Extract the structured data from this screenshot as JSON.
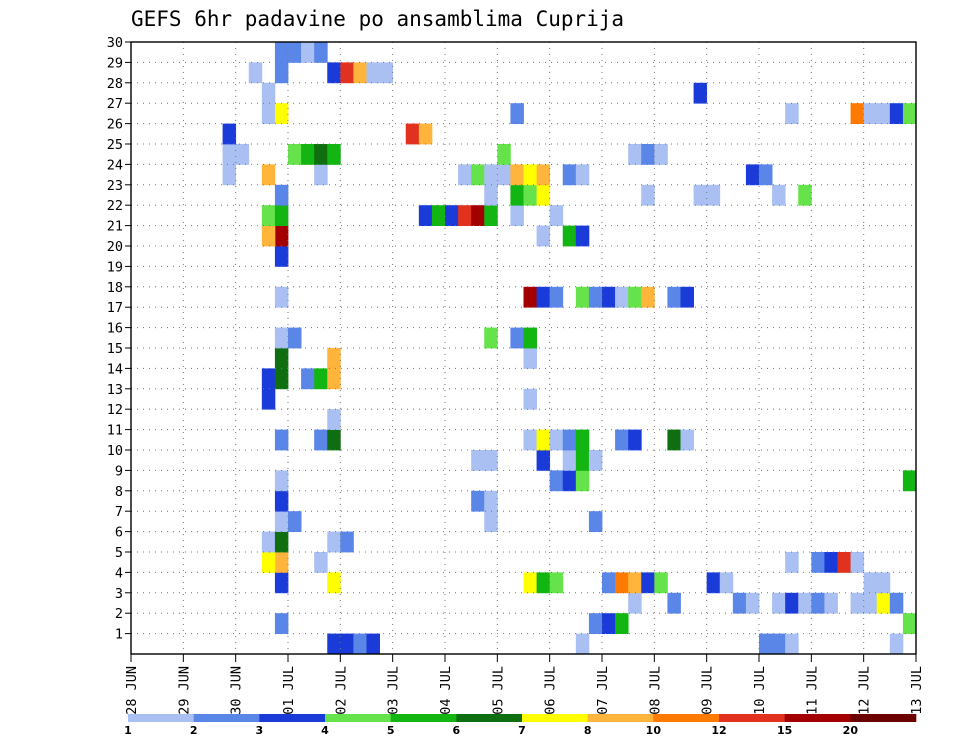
{
  "chart_data": {
    "type": "heatmap",
    "title": "GEFS 6hr padavine po ansamblima Cuprija",
    "x_tick_labels": [
      "28 JUN",
      "29 JUN",
      "30 JUN",
      "01 JUL",
      "02 JUL",
      "03 JUL",
      "04 JUL",
      "05 JUL",
      "06 JUL",
      "07 JUL",
      "08 JUL",
      "09 JUL",
      "10 JUL",
      "11 JUL",
      "12 JUL",
      "13 JUL"
    ],
    "y_tick_labels": [
      "1",
      "2",
      "3",
      "4",
      "5",
      "6",
      "7",
      "8",
      "9",
      "10",
      "11",
      "12",
      "13",
      "14",
      "15",
      "16",
      "17",
      "18",
      "19",
      "20",
      "21",
      "22",
      "23",
      "24",
      "25",
      "26",
      "27",
      "28",
      "29",
      "30"
    ],
    "x_unit": "6-hour step from 28 JUN 00",
    "xlim": [
      0,
      60
    ],
    "ylim": [
      0,
      30
    ],
    "grid": true,
    "color_scale": {
      "labels": [
        "1",
        "2",
        "3",
        "4",
        "5",
        "6",
        "7",
        "8",
        "10",
        "12",
        "15",
        "20"
      ],
      "colors": [
        "#aac0f3",
        "#5a86e8",
        "#1a3bd8",
        "#66e34a",
        "#12b512",
        "#0e6e10",
        "#ffff00",
        "#ffb43c",
        "#ff7a00",
        "#e0321e",
        "#a30000",
        "#6b0000"
      ]
    },
    "cells": [
      [
        16,
        0,
        "#1a3bd8"
      ],
      [
        17,
        0,
        "#1a3bd8"
      ],
      [
        18,
        0,
        "#5a86e8"
      ],
      [
        19,
        0,
        "#1a3bd8"
      ],
      [
        35,
        0,
        "#aac0f3"
      ],
      [
        49,
        0,
        "#5a86e8"
      ],
      [
        50,
        0,
        "#5a86e8"
      ],
      [
        51,
        0,
        "#aac0f3"
      ],
      [
        59,
        0,
        "#aac0f3"
      ],
      [
        12,
        1,
        "#5a86e8"
      ],
      [
        36,
        1,
        "#5a86e8"
      ],
      [
        37,
        1,
        "#1a3bd8"
      ],
      [
        38,
        1,
        "#12b512"
      ],
      [
        60,
        1,
        "#66e34a"
      ],
      [
        39,
        2,
        "#aac0f3"
      ],
      [
        42,
        2,
        "#5a86e8"
      ],
      [
        47,
        2,
        "#5a86e8"
      ],
      [
        48,
        2,
        "#aac0f3"
      ],
      [
        50,
        2,
        "#aac0f3"
      ],
      [
        51,
        2,
        "#1a3bd8"
      ],
      [
        52,
        2,
        "#aac0f3"
      ],
      [
        53,
        2,
        "#5a86e8"
      ],
      [
        54,
        2,
        "#aac0f3"
      ],
      [
        56,
        2,
        "#aac0f3"
      ],
      [
        57,
        2,
        "#aac0f3"
      ],
      [
        58,
        2,
        "#ffff00"
      ],
      [
        59,
        2,
        "#5a86e8"
      ],
      [
        12,
        3,
        "#1a3bd8"
      ],
      [
        16,
        3,
        "#ffff00"
      ],
      [
        31,
        3,
        "#ffff00"
      ],
      [
        32,
        3,
        "#12b512"
      ],
      [
        33,
        3,
        "#66e34a"
      ],
      [
        37,
        3,
        "#5a86e8"
      ],
      [
        38,
        3,
        "#ff7a00"
      ],
      [
        39,
        3,
        "#ffb43c"
      ],
      [
        40,
        3,
        "#1a3bd8"
      ],
      [
        41,
        3,
        "#66e34a"
      ],
      [
        45,
        3,
        "#1a3bd8"
      ],
      [
        46,
        3,
        "#aac0f3"
      ],
      [
        57,
        3,
        "#aac0f3"
      ],
      [
        58,
        3,
        "#aac0f3"
      ],
      [
        12,
        4,
        "#ffb43c"
      ],
      [
        15,
        4,
        "#aac0f3"
      ],
      [
        11,
        4,
        "#ffff00"
      ],
      [
        51,
        4,
        "#aac0f3"
      ],
      [
        53,
        4,
        "#5a86e8"
      ],
      [
        54,
        4,
        "#1a3bd8"
      ],
      [
        55,
        4,
        "#e0321e"
      ],
      [
        56,
        4,
        "#aac0f3"
      ],
      [
        11,
        5,
        "#aac0f3"
      ],
      [
        12,
        5,
        "#0e6e10"
      ],
      [
        16,
        5,
        "#aac0f3"
      ],
      [
        17,
        5,
        "#5a86e8"
      ],
      [
        12,
        6,
        "#aac0f3"
      ],
      [
        13,
        6,
        "#5a86e8"
      ],
      [
        28,
        6,
        "#aac0f3"
      ],
      [
        36,
        6,
        "#5a86e8"
      ],
      [
        12,
        7,
        "#1a3bd8"
      ],
      [
        27,
        7,
        "#5a86e8"
      ],
      [
        28,
        7,
        "#aac0f3"
      ],
      [
        12,
        8,
        "#aac0f3"
      ],
      [
        33,
        8,
        "#5a86e8"
      ],
      [
        34,
        8,
        "#1a3bd8"
      ],
      [
        35,
        8,
        "#66e34a"
      ],
      [
        60,
        8,
        "#12b512"
      ],
      [
        27,
        9,
        "#aac0f3"
      ],
      [
        28,
        9,
        "#aac0f3"
      ],
      [
        32,
        9,
        "#1a3bd8"
      ],
      [
        34,
        9,
        "#aac0f3"
      ],
      [
        35,
        9,
        "#12b512"
      ],
      [
        36,
        9,
        "#aac0f3"
      ],
      [
        12,
        10,
        "#5a86e8"
      ],
      [
        15,
        10,
        "#5a86e8"
      ],
      [
        16,
        10,
        "#0e6e10"
      ],
      [
        31,
        10,
        "#aac0f3"
      ],
      [
        32,
        10,
        "#ffff00"
      ],
      [
        33,
        10,
        "#aac0f3"
      ],
      [
        34,
        10,
        "#5a86e8"
      ],
      [
        35,
        10,
        "#12b512"
      ],
      [
        38,
        10,
        "#5a86e8"
      ],
      [
        39,
        10,
        "#1a3bd8"
      ],
      [
        42,
        10,
        "#0e6e10"
      ],
      [
        43,
        10,
        "#aac0f3"
      ],
      [
        16,
        11,
        "#aac0f3"
      ],
      [
        11,
        12,
        "#1a3bd8"
      ],
      [
        31,
        12,
        "#aac0f3"
      ],
      [
        11,
        13,
        "#1a3bd8"
      ],
      [
        12,
        13,
        "#0e6e10"
      ],
      [
        14,
        13,
        "#5a86e8"
      ],
      [
        15,
        13,
        "#12b512"
      ],
      [
        16,
        13,
        "#ffb43c"
      ],
      [
        12,
        14,
        "#0e6e10"
      ],
      [
        16,
        14,
        "#ffb43c"
      ],
      [
        31,
        14,
        "#aac0f3"
      ],
      [
        12,
        15,
        "#aac0f3"
      ],
      [
        13,
        15,
        "#5a86e8"
      ],
      [
        28,
        15,
        "#66e34a"
      ],
      [
        30,
        15,
        "#5a86e8"
      ],
      [
        31,
        15,
        "#12b512"
      ],
      [
        12,
        17,
        "#aac0f3"
      ],
      [
        31,
        17,
        "#a30000"
      ],
      [
        32,
        17,
        "#1a3bd8"
      ],
      [
        33,
        17,
        "#5a86e8"
      ],
      [
        35,
        17,
        "#66e34a"
      ],
      [
        36,
        17,
        "#5a86e8"
      ],
      [
        37,
        17,
        "#1a3bd8"
      ],
      [
        38,
        17,
        "#aac0f3"
      ],
      [
        39,
        17,
        "#66e34a"
      ],
      [
        40,
        17,
        "#ffb43c"
      ],
      [
        42,
        17,
        "#5a86e8"
      ],
      [
        43,
        17,
        "#1a3bd8"
      ],
      [
        12,
        19,
        "#1a3bd8"
      ],
      [
        12,
        20,
        "#a30000"
      ],
      [
        11,
        20,
        "#ffb43c"
      ],
      [
        32,
        20,
        "#aac0f3"
      ],
      [
        34,
        20,
        "#12b512"
      ],
      [
        35,
        20,
        "#1a3bd8"
      ],
      [
        11,
        21,
        "#66e34a"
      ],
      [
        12,
        21,
        "#12b512"
      ],
      [
        23,
        21,
        "#1a3bd8"
      ],
      [
        24,
        21,
        "#12b512"
      ],
      [
        25,
        21,
        "#1a3bd8"
      ],
      [
        26,
        21,
        "#e0321e"
      ],
      [
        27,
        21,
        "#a30000"
      ],
      [
        28,
        21,
        "#12b512"
      ],
      [
        30,
        21,
        "#aac0f3"
      ],
      [
        33,
        21,
        "#aac0f3"
      ],
      [
        12,
        22,
        "#5a86e8"
      ],
      [
        28,
        22,
        "#aac0f3"
      ],
      [
        30,
        22,
        "#12b512"
      ],
      [
        31,
        22,
        "#66e34a"
      ],
      [
        32,
        22,
        "#ffff00"
      ],
      [
        40,
        22,
        "#aac0f3"
      ],
      [
        44,
        22,
        "#aac0f3"
      ],
      [
        45,
        22,
        "#aac0f3"
      ],
      [
        50,
        22,
        "#aac0f3"
      ],
      [
        52,
        22,
        "#66e34a"
      ],
      [
        11,
        23,
        "#ffb43c"
      ],
      [
        15,
        23,
        "#aac0f3"
      ],
      [
        26,
        23,
        "#aac0f3"
      ],
      [
        27,
        23,
        "#66e34a"
      ],
      [
        28,
        23,
        "#aac0f3"
      ],
      [
        29,
        23,
        "#aac0f3"
      ],
      [
        30,
        23,
        "#ffb43c"
      ],
      [
        31,
        23,
        "#ffff00"
      ],
      [
        32,
        23,
        "#ffb43c"
      ],
      [
        34,
        23,
        "#5a86e8"
      ],
      [
        35,
        23,
        "#aac0f3"
      ],
      [
        48,
        23,
        "#1a3bd8"
      ],
      [
        49,
        23,
        "#5a86e8"
      ],
      [
        8,
        23,
        "#aac0f3"
      ],
      [
        8,
        24,
        "#aac0f3"
      ],
      [
        9,
        24,
        "#aac0f3"
      ],
      [
        13,
        24,
        "#66e34a"
      ],
      [
        14,
        24,
        "#12b512"
      ],
      [
        15,
        24,
        "#0e6e10"
      ],
      [
        16,
        24,
        "#12b512"
      ],
      [
        29,
        24,
        "#66e34a"
      ],
      [
        39,
        24,
        "#aac0f3"
      ],
      [
        40,
        24,
        "#5a86e8"
      ],
      [
        41,
        24,
        "#aac0f3"
      ],
      [
        8,
        25,
        "#1a3bd8"
      ],
      [
        22,
        25,
        "#e0321e"
      ],
      [
        23,
        25,
        "#ffb43c"
      ],
      [
        11,
        26,
        "#aac0f3"
      ],
      [
        12,
        26,
        "#ffff00"
      ],
      [
        30,
        26,
        "#5a86e8"
      ],
      [
        51,
        26,
        "#aac0f3"
      ],
      [
        56,
        26,
        "#ff7a00"
      ],
      [
        57,
        26,
        "#aac0f3"
      ],
      [
        58,
        26,
        "#aac0f3"
      ],
      [
        59,
        26,
        "#1a3bd8"
      ],
      [
        60,
        26,
        "#66e34a"
      ],
      [
        11,
        27,
        "#aac0f3"
      ],
      [
        44,
        27,
        "#1a3bd8"
      ],
      [
        10,
        28,
        "#aac0f3"
      ],
      [
        12,
        28,
        "#5a86e8"
      ],
      [
        16,
        28,
        "#1a3bd8"
      ],
      [
        17,
        28,
        "#e0321e"
      ],
      [
        18,
        28,
        "#ffb43c"
      ],
      [
        19,
        28,
        "#aac0f3"
      ],
      [
        20,
        28,
        "#aac0f3"
      ],
      [
        12,
        29,
        "#5a86e8"
      ],
      [
        13,
        29,
        "#5a86e8"
      ],
      [
        14,
        29,
        "#aac0f3"
      ],
      [
        15,
        29,
        "#5a86e8"
      ]
    ]
  }
}
